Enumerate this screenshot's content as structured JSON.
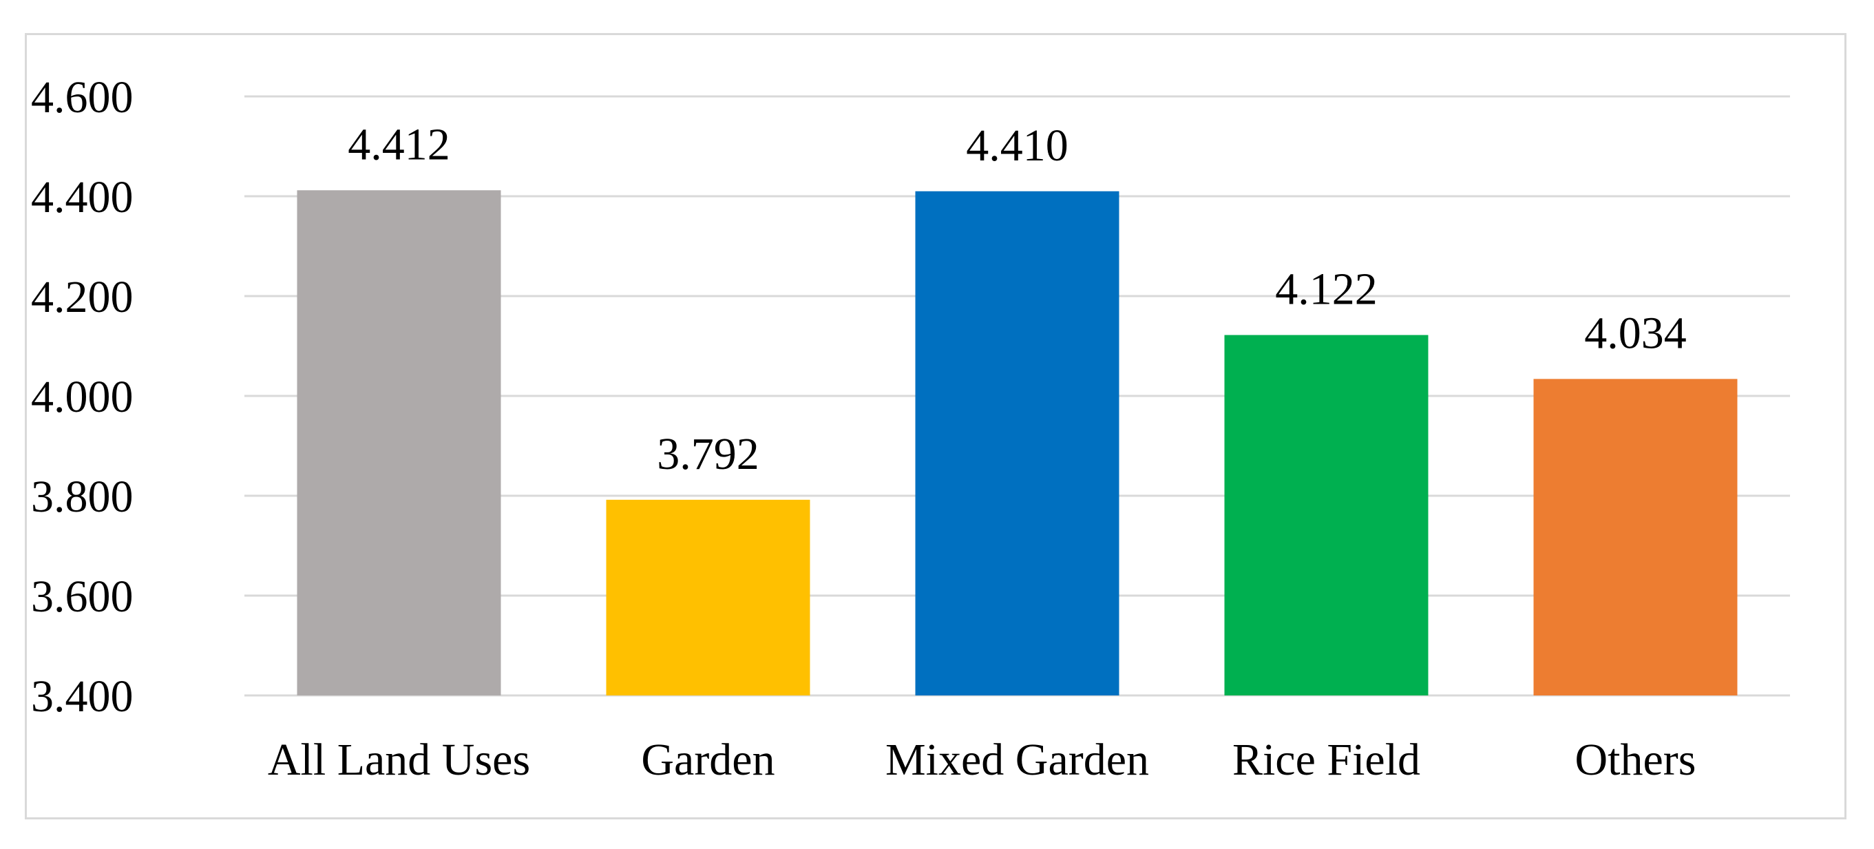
{
  "chart_data": {
    "type": "bar",
    "title": "",
    "xlabel": "",
    "ylabel": "",
    "categories": [
      "All Land Uses",
      "Garden",
      "Mixed Garden",
      "Rice Field",
      "Others"
    ],
    "values": [
      4.412,
      3.792,
      4.41,
      4.122,
      4.034
    ],
    "value_labels": [
      "4.412",
      "3.792",
      "4.410",
      "4.122",
      "4.034"
    ],
    "ylim": [
      3.4,
      4.6
    ],
    "y_ticks": [
      3.4,
      3.6,
      3.8,
      4.0,
      4.2,
      4.4,
      4.6
    ],
    "y_tick_labels": [
      "3.400",
      "3.600",
      "3.800",
      "4.000",
      "4.200",
      "4.400",
      "4.600"
    ],
    "colors": [
      "#AEAAAA",
      "#FFC000",
      "#0070C0",
      "#00B050",
      "#ED7D31"
    ],
    "grid": true,
    "legend": "none"
  }
}
